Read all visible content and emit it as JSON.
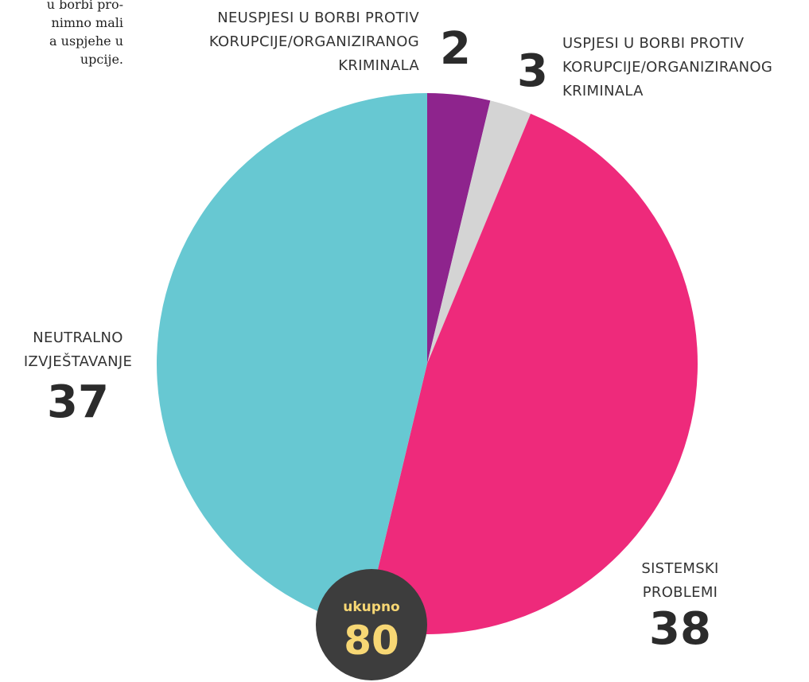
{
  "chart_data": {
    "type": "pie",
    "note_fragment": [
      "u borbi pro-",
      "nimno mali",
      "a uspjehe u",
      "upcije."
    ],
    "categories": [
      "USPJESI U BORBI PROTIV KORUPCIJE/ORGANIZIRANOG KRIMINALA",
      "NEUSPJESI U BORBI PROTIV KORUPCIJE/ORGANIZIRANOG KRIMINALA",
      "SISTEMSKI PROBLEMI",
      "NEUTRALNO IZVJEŠTAVANJE"
    ],
    "values": [
      3,
      2,
      38,
      37
    ],
    "colors": [
      "#8e248d",
      "#d4d4d4",
      "#ee2a7b",
      "#67c8d2"
    ],
    "total_label": "ukupno",
    "total": 80
  }
}
